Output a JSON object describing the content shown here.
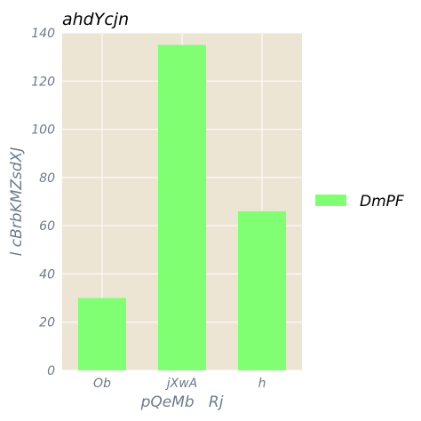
{
  "chart_data": {
    "type": "bar",
    "title": "ahdYcjn",
    "xlabel": "pQeMb   Rj",
    "ylabel": "l cBrbKMZsdXJ",
    "categories": [
      "Ob",
      "jXwA",
      "h"
    ],
    "series": [
      {
        "name": "DmPF",
        "values": [
          30,
          135,
          66
        ]
      }
    ],
    "ylim": [
      0,
      140
    ],
    "yticks": [
      0,
      20,
      40,
      60,
      80,
      100,
      120,
      140
    ],
    "grid": true,
    "legend_position": "right",
    "colors": {
      "bar": "#80ff72",
      "plot_background": "#ede5d4",
      "grid": "#ffffff",
      "tick_text": "#6b7b8c"
    }
  }
}
